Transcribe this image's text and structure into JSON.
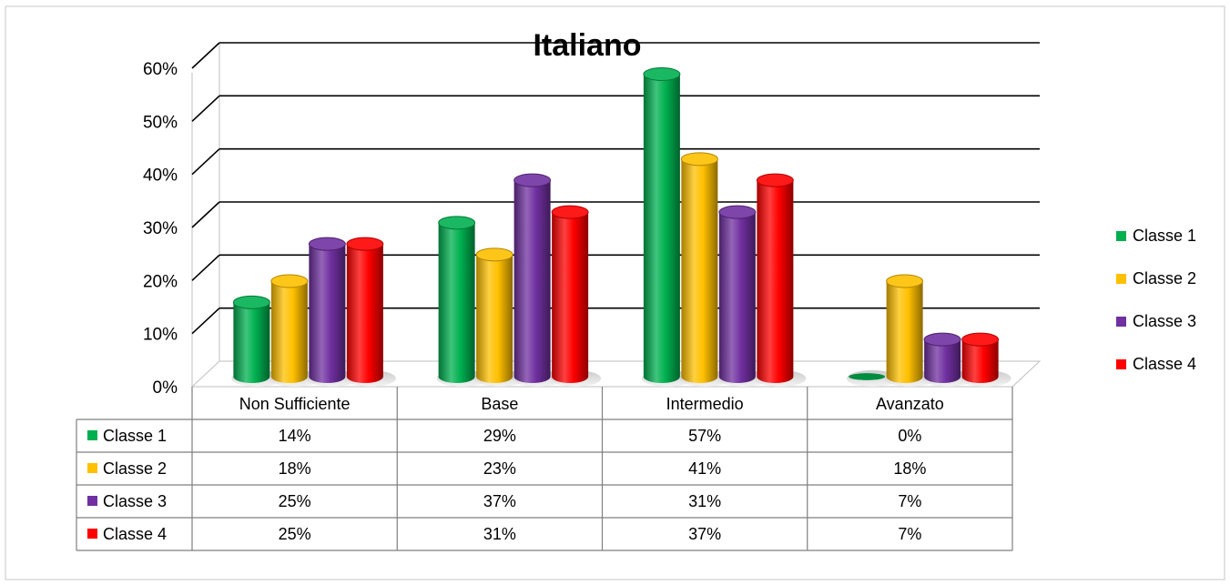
{
  "chart_data": {
    "type": "bar",
    "title": "Italiano",
    "categories": [
      "Non Sufficiente",
      "Base",
      "Intermedio",
      "Avanzato"
    ],
    "series": [
      {
        "name": "Classe 1",
        "color": "#00b050",
        "values": [
          14,
          29,
          57,
          0
        ],
        "labels": [
          "14%",
          "29%",
          "57%",
          "0%"
        ]
      },
      {
        "name": "Classe 2",
        "color": "#ffc000",
        "values": [
          18,
          23,
          41,
          18
        ],
        "labels": [
          "18%",
          "23%",
          "41%",
          "18%"
        ]
      },
      {
        "name": "Classe 3",
        "color": "#7030a0",
        "values": [
          25,
          37,
          31,
          7
        ],
        "labels": [
          "25%",
          "37%",
          "31%",
          "7%"
        ]
      },
      {
        "name": "Classe 4",
        "color": "#ff0000",
        "values": [
          25,
          31,
          37,
          7
        ],
        "labels": [
          "25%",
          "31%",
          "37%",
          "7%"
        ]
      }
    ],
    "ylim": [
      0,
      60
    ],
    "yticks": [
      "0%",
      "10%",
      "20%",
      "30%",
      "40%",
      "50%",
      "60%"
    ],
    "grid": true,
    "legend": "right",
    "data_table": true
  }
}
